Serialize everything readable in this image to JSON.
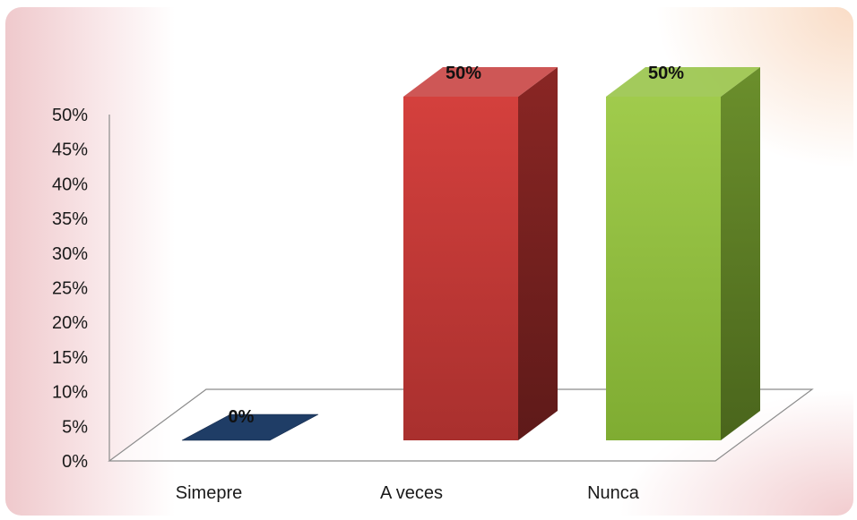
{
  "chart_data": {
    "type": "bar",
    "categories": [
      "Simepre",
      "A veces",
      "Nunca"
    ],
    "values": [
      0,
      50,
      50
    ],
    "data_labels": [
      "0%",
      "50%",
      "50%"
    ],
    "y_ticks": [
      "0%",
      "5%",
      "10%",
      "15%",
      "20%",
      "25%",
      "30%",
      "35%",
      "40%",
      "45%",
      "50%"
    ],
    "ylim": [
      0,
      50
    ],
    "title": "",
    "xlabel": "",
    "ylabel": "",
    "grid": false,
    "legend": "none",
    "style": "3d-column",
    "colors": [
      "#1f3d66",
      "#c63a38",
      "#93c13f"
    ]
  }
}
